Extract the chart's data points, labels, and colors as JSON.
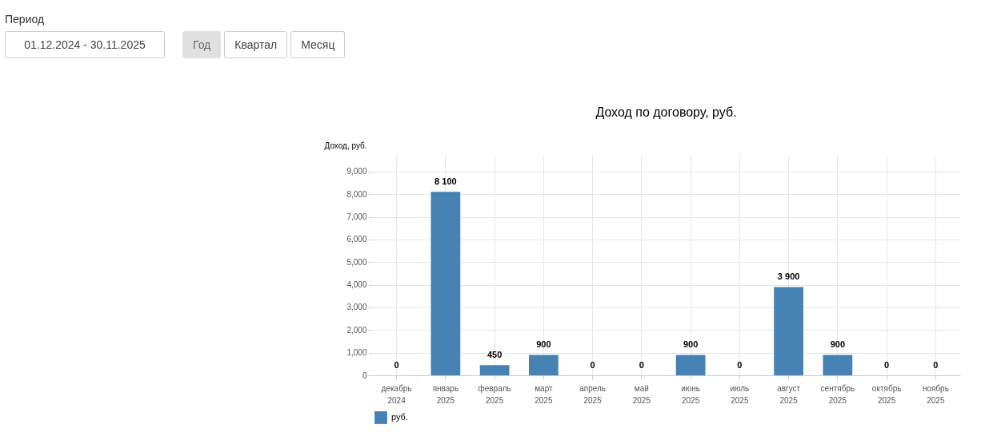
{
  "chart_data": {
    "type": "bar",
    "title": "Доход по договору, руб.",
    "ylabel": "Доход, руб.",
    "annotations": [
      "Период",
      "01.12.2024 - 30.11.2025",
      "Год",
      "Квартал",
      "Месяц"
    ],
    "categories": [
      "декабрь 2024",
      "январь 2025",
      "февраль 2025",
      "март 2025",
      "апрель 2025",
      "май 2025",
      "июнь 2025",
      "июль 2025",
      "август 2025",
      "сентябрь 2025",
      "октябрь 2025",
      "ноябрь 2025"
    ],
    "series": [
      {
        "name": "руб.",
        "color": "#4682b4",
        "values": [
          0,
          8100,
          450,
          900,
          0,
          0,
          900,
          0,
          3900,
          900,
          0,
          0
        ],
        "value_labels": [
          "0",
          "8 100",
          "450",
          "900",
          "0",
          "0",
          "900",
          "0",
          "3 900",
          "900",
          "0",
          "0"
        ]
      }
    ],
    "ylim": [
      0,
      9700
    ],
    "yticks": [
      0,
      {
        "value": 1000,
        "label": "1,000"
      },
      {
        "value": 2000,
        "label": "2,000"
      },
      {
        "value": 3000,
        "label": "3,000"
      },
      {
        "value": 4000,
        "label": "4,000"
      },
      {
        "value": 5000,
        "label": "5,000"
      },
      {
        "value": 6000,
        "label": "6,000"
      },
      {
        "value": 7000,
        "label": "7,000"
      },
      {
        "value": 8000,
        "label": "8,000"
      },
      {
        "value": 9000,
        "label": "9,000"
      }
    ],
    "grid": true,
    "legend": "bottom"
  }
}
